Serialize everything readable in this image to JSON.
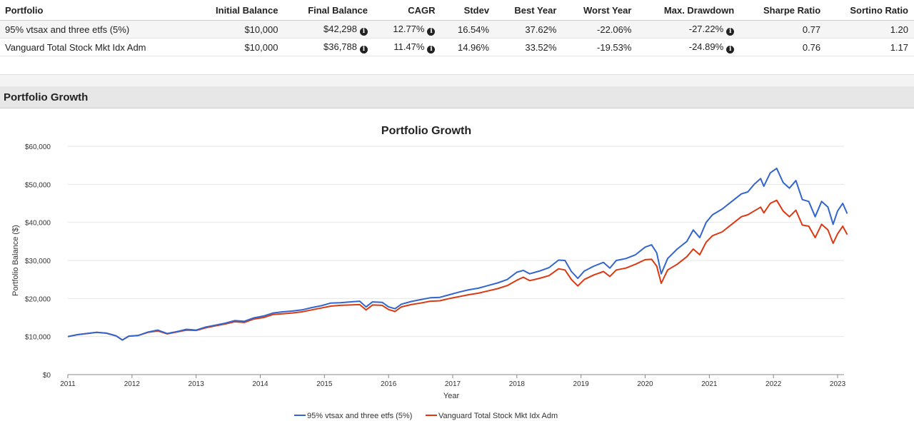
{
  "table": {
    "headers": [
      "Portfolio",
      "Initial Balance",
      "Final Balance",
      "CAGR",
      "Stdev",
      "Best Year",
      "Worst Year",
      "Max. Drawdown",
      "Sharpe Ratio",
      "Sortino Ratio"
    ],
    "rows": [
      {
        "portfolio": "95% vtsax and three etfs (5%)",
        "initial": "$10,000",
        "final": "$42,298",
        "cagr": "12.77%",
        "stdev": "16.54%",
        "best": "37.62%",
        "worst": "-22.06%",
        "drawdown": "-27.22%",
        "sharpe": "0.77",
        "sortino": "1.20"
      },
      {
        "portfolio": "Vanguard Total Stock Mkt Idx Adm",
        "initial": "$10,000",
        "final": "$36,788",
        "cagr": "11.47%",
        "stdev": "14.96%",
        "best": "33.52%",
        "worst": "-19.53%",
        "drawdown": "-24.89%",
        "sharpe": "0.76",
        "sortino": "1.17"
      }
    ],
    "info_glyph": "i"
  },
  "section_title": "Portfolio Growth",
  "colors": {
    "series1": "#3366cc",
    "series2": "#dc3912"
  },
  "chart_data": {
    "type": "line",
    "title": "Portfolio Growth",
    "xlabel": "Year",
    "ylabel": "Portfolio Balance ($)",
    "xlim": [
      2011,
      2023.1
    ],
    "ylim": [
      0,
      60000
    ],
    "xticks": [
      2011,
      2012,
      2013,
      2014,
      2015,
      2016,
      2017,
      2018,
      2019,
      2020,
      2021,
      2022,
      2023
    ],
    "yticks": [
      0,
      10000,
      20000,
      30000,
      40000,
      50000,
      60000
    ],
    "ytick_labels": [
      "$0",
      "$10,000",
      "$20,000",
      "$30,000",
      "$40,000",
      "$50,000",
      "$60,000"
    ],
    "legend_position": "bottom",
    "series": [
      {
        "name": "95% vtsax and three etfs (5%)",
        "color": "#3366cc",
        "points": [
          [
            2011.0,
            10000
          ],
          [
            2011.15,
            10500
          ],
          [
            2011.3,
            10800
          ],
          [
            2011.45,
            11100
          ],
          [
            2011.6,
            10900
          ],
          [
            2011.75,
            10200
          ],
          [
            2011.85,
            9100
          ],
          [
            2011.95,
            10100
          ],
          [
            2012.1,
            10300
          ],
          [
            2012.25,
            11200
          ],
          [
            2012.4,
            11700
          ],
          [
            2012.55,
            10800
          ],
          [
            2012.7,
            11300
          ],
          [
            2012.85,
            11900
          ],
          [
            2013.0,
            11700
          ],
          [
            2013.15,
            12500
          ],
          [
            2013.3,
            13000
          ],
          [
            2013.45,
            13500
          ],
          [
            2013.6,
            14200
          ],
          [
            2013.75,
            14000
          ],
          [
            2013.9,
            14900
          ],
          [
            2014.05,
            15400
          ],
          [
            2014.2,
            16200
          ],
          [
            2014.35,
            16500
          ],
          [
            2014.5,
            16700
          ],
          [
            2014.65,
            17000
          ],
          [
            2014.8,
            17600
          ],
          [
            2014.95,
            18100
          ],
          [
            2015.1,
            18800
          ],
          [
            2015.25,
            18900
          ],
          [
            2015.4,
            19100
          ],
          [
            2015.55,
            19300
          ],
          [
            2015.65,
            17800
          ],
          [
            2015.75,
            19100
          ],
          [
            2015.9,
            19000
          ],
          [
            2016.0,
            17800
          ],
          [
            2016.1,
            17300
          ],
          [
            2016.2,
            18500
          ],
          [
            2016.35,
            19200
          ],
          [
            2016.5,
            19700
          ],
          [
            2016.65,
            20200
          ],
          [
            2016.8,
            20300
          ],
          [
            2016.95,
            21000
          ],
          [
            2017.1,
            21700
          ],
          [
            2017.25,
            22300
          ],
          [
            2017.4,
            22700
          ],
          [
            2017.55,
            23400
          ],
          [
            2017.7,
            24100
          ],
          [
            2017.85,
            25000
          ],
          [
            2018.0,
            26900
          ],
          [
            2018.1,
            27400
          ],
          [
            2018.2,
            26500
          ],
          [
            2018.35,
            27200
          ],
          [
            2018.5,
            28100
          ],
          [
            2018.65,
            30100
          ],
          [
            2018.75,
            30000
          ],
          [
            2018.85,
            27100
          ],
          [
            2018.95,
            25300
          ],
          [
            2019.05,
            27200
          ],
          [
            2019.2,
            28500
          ],
          [
            2019.35,
            29500
          ],
          [
            2019.45,
            28000
          ],
          [
            2019.55,
            30000
          ],
          [
            2019.7,
            30500
          ],
          [
            2019.85,
            31500
          ],
          [
            2020.0,
            33500
          ],
          [
            2020.1,
            34100
          ],
          [
            2020.18,
            32000
          ],
          [
            2020.25,
            26500
          ],
          [
            2020.35,
            30500
          ],
          [
            2020.5,
            33000
          ],
          [
            2020.65,
            35000
          ],
          [
            2020.75,
            38000
          ],
          [
            2020.85,
            36000
          ],
          [
            2020.95,
            40000
          ],
          [
            2021.05,
            42000
          ],
          [
            2021.2,
            43500
          ],
          [
            2021.35,
            45500
          ],
          [
            2021.5,
            47500
          ],
          [
            2021.6,
            48000
          ],
          [
            2021.7,
            50000
          ],
          [
            2021.8,
            51500
          ],
          [
            2021.85,
            49500
          ],
          [
            2021.95,
            53000
          ],
          [
            2022.05,
            54200
          ],
          [
            2022.15,
            50500
          ],
          [
            2022.25,
            49000
          ],
          [
            2022.35,
            51000
          ],
          [
            2022.45,
            46000
          ],
          [
            2022.55,
            45500
          ],
          [
            2022.65,
            41500
          ],
          [
            2022.75,
            45500
          ],
          [
            2022.85,
            44000
          ],
          [
            2022.93,
            39500
          ],
          [
            2023.0,
            43000
          ],
          [
            2023.08,
            45000
          ],
          [
            2023.15,
            42300
          ]
        ]
      },
      {
        "name": "Vanguard Total Stock Mkt Idx Adm",
        "color": "#dc3912",
        "points": [
          [
            2011.0,
            10000
          ],
          [
            2011.15,
            10500
          ],
          [
            2011.3,
            10800
          ],
          [
            2011.45,
            11100
          ],
          [
            2011.6,
            10900
          ],
          [
            2011.75,
            10200
          ],
          [
            2011.85,
            9100
          ],
          [
            2011.95,
            10100
          ],
          [
            2012.1,
            10300
          ],
          [
            2012.25,
            11100
          ],
          [
            2012.4,
            11500
          ],
          [
            2012.55,
            10700
          ],
          [
            2012.7,
            11200
          ],
          [
            2012.85,
            11700
          ],
          [
            2013.0,
            11600
          ],
          [
            2013.15,
            12300
          ],
          [
            2013.3,
            12800
          ],
          [
            2013.45,
            13300
          ],
          [
            2013.6,
            13900
          ],
          [
            2013.75,
            13700
          ],
          [
            2013.9,
            14600
          ],
          [
            2014.05,
            15000
          ],
          [
            2014.2,
            15800
          ],
          [
            2014.35,
            16000
          ],
          [
            2014.5,
            16200
          ],
          [
            2014.65,
            16500
          ],
          [
            2014.8,
            17000
          ],
          [
            2014.95,
            17500
          ],
          [
            2015.1,
            18000
          ],
          [
            2015.25,
            18200
          ],
          [
            2015.4,
            18300
          ],
          [
            2015.55,
            18400
          ],
          [
            2015.65,
            17000
          ],
          [
            2015.75,
            18300
          ],
          [
            2015.9,
            18200
          ],
          [
            2016.0,
            17100
          ],
          [
            2016.1,
            16600
          ],
          [
            2016.2,
            17800
          ],
          [
            2016.35,
            18400
          ],
          [
            2016.5,
            18800
          ],
          [
            2016.65,
            19300
          ],
          [
            2016.8,
            19400
          ],
          [
            2016.95,
            20000
          ],
          [
            2017.1,
            20500
          ],
          [
            2017.25,
            21000
          ],
          [
            2017.4,
            21400
          ],
          [
            2017.55,
            22000
          ],
          [
            2017.7,
            22600
          ],
          [
            2017.85,
            23400
          ],
          [
            2018.0,
            24800
          ],
          [
            2018.1,
            25600
          ],
          [
            2018.2,
            24700
          ],
          [
            2018.35,
            25300
          ],
          [
            2018.5,
            26000
          ],
          [
            2018.65,
            27800
          ],
          [
            2018.75,
            27500
          ],
          [
            2018.85,
            25000
          ],
          [
            2018.95,
            23300
          ],
          [
            2019.05,
            25000
          ],
          [
            2019.2,
            26200
          ],
          [
            2019.35,
            27100
          ],
          [
            2019.45,
            25800
          ],
          [
            2019.55,
            27500
          ],
          [
            2019.7,
            28000
          ],
          [
            2019.85,
            29000
          ],
          [
            2020.0,
            30200
          ],
          [
            2020.1,
            30300
          ],
          [
            2020.18,
            28500
          ],
          [
            2020.25,
            24000
          ],
          [
            2020.35,
            27500
          ],
          [
            2020.5,
            29000
          ],
          [
            2020.65,
            31000
          ],
          [
            2020.75,
            33000
          ],
          [
            2020.85,
            31500
          ],
          [
            2020.95,
            34800
          ],
          [
            2021.05,
            36500
          ],
          [
            2021.2,
            37500
          ],
          [
            2021.35,
            39500
          ],
          [
            2021.5,
            41500
          ],
          [
            2021.6,
            42000
          ],
          [
            2021.7,
            43000
          ],
          [
            2021.8,
            44000
          ],
          [
            2021.85,
            42500
          ],
          [
            2021.95,
            45000
          ],
          [
            2022.05,
            45800
          ],
          [
            2022.15,
            43000
          ],
          [
            2022.25,
            41500
          ],
          [
            2022.35,
            43200
          ],
          [
            2022.45,
            39300
          ],
          [
            2022.55,
            39000
          ],
          [
            2022.65,
            36000
          ],
          [
            2022.75,
            39500
          ],
          [
            2022.85,
            38000
          ],
          [
            2022.93,
            34500
          ],
          [
            2023.0,
            37000
          ],
          [
            2023.08,
            39000
          ],
          [
            2023.15,
            36800
          ]
        ]
      }
    ]
  }
}
